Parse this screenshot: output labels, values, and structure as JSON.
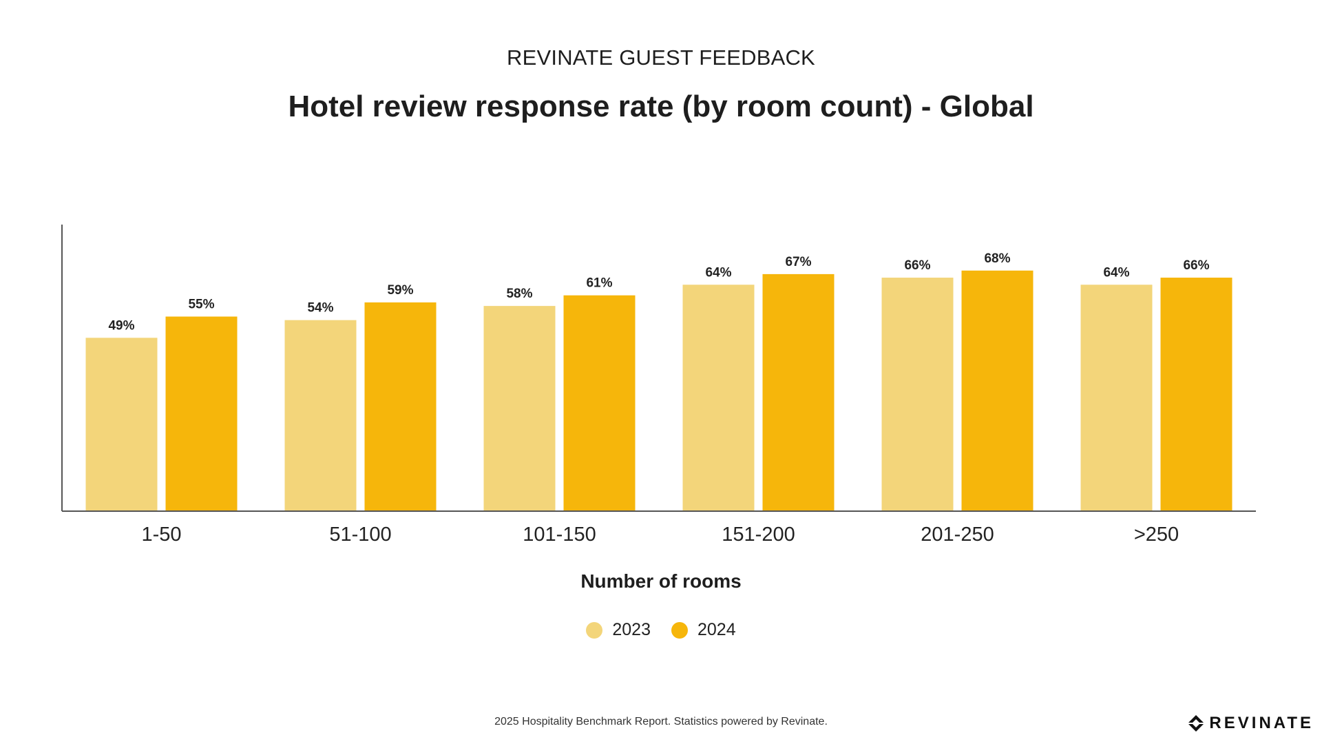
{
  "header": {
    "kicker": "REVINATE GUEST FEEDBACK"
  },
  "colors": {
    "series_2023": "#F3D57A",
    "series_2024": "#F6B60B",
    "axis": "#555555",
    "label_text": "#222222"
  },
  "chart_data": {
    "type": "bar",
    "title": "Hotel review response rate (by room count) - Global",
    "xlabel": "Number of rooms",
    "ylabel": "",
    "categories": [
      "1-50",
      "51-100",
      "101-150",
      "151-200",
      "201-250",
      ">250"
    ],
    "series": [
      {
        "name": "2023",
        "values": [
          49,
          54,
          58,
          64,
          66,
          64
        ]
      },
      {
        "name": "2024",
        "values": [
          55,
          59,
          61,
          67,
          68,
          66
        ]
      }
    ],
    "data_labels": [
      [
        "49%",
        "54%",
        "58%",
        "64%",
        "66%",
        "64%"
      ],
      [
        "55%",
        "59%",
        "61%",
        "67%",
        "68%",
        "66%"
      ]
    ],
    "ylim": [
      0,
      81
    ],
    "grid": false,
    "legend_position": "bottom-center"
  },
  "footer": {
    "text": "2025 Hospitality Benchmark Report. Statistics powered by Revinate.",
    "logo_text": "REVINATE",
    "logo_icon": "revinate-logo-icon"
  }
}
